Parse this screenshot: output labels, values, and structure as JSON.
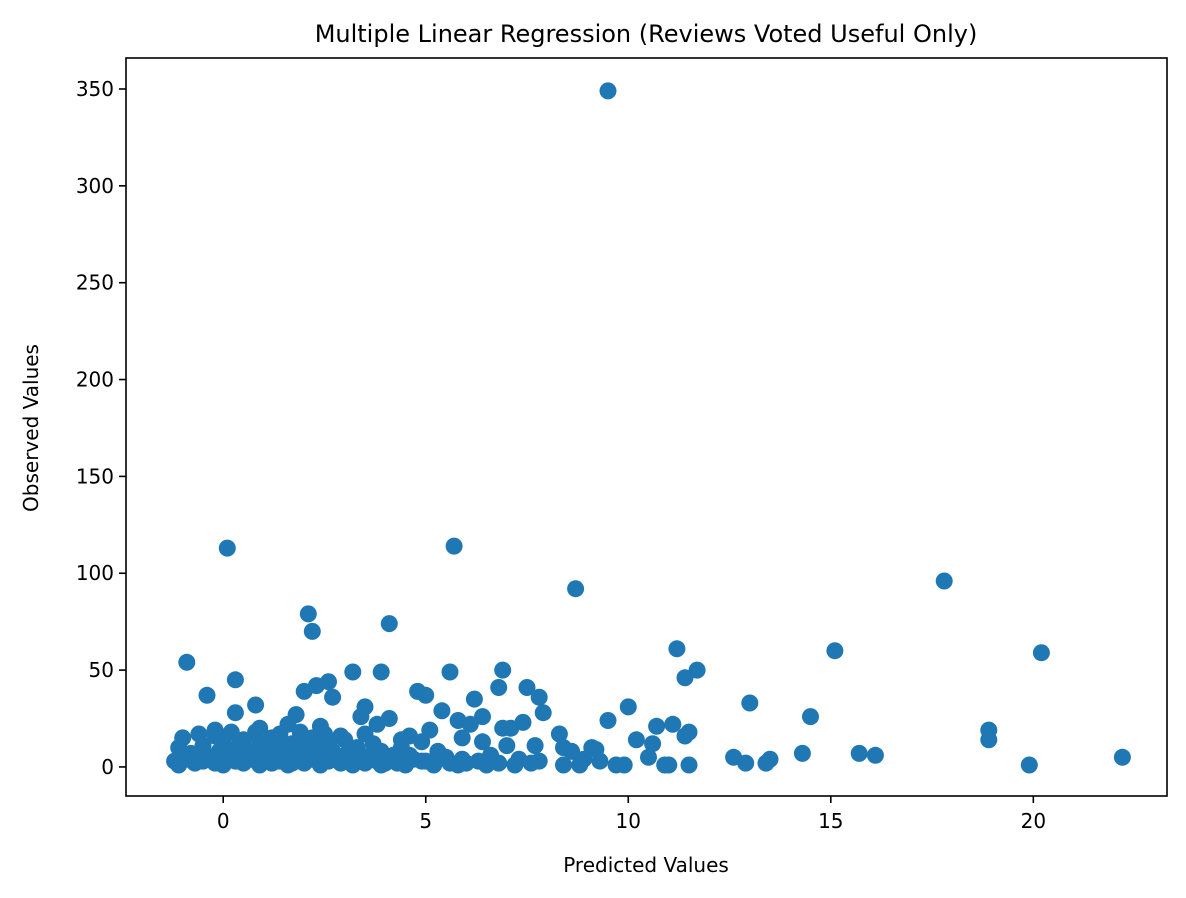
{
  "chart_data": {
    "type": "scatter",
    "title": "Multiple Linear Regression (Reviews Voted Useful Only)",
    "xlabel": "Predicted Values",
    "ylabel": "Observed Values",
    "xlim": [
      -2.4,
      23.3
    ],
    "ylim": [
      -15,
      366
    ],
    "x_ticks": [
      0,
      5,
      10,
      15,
      20
    ],
    "y_ticks": [
      0,
      50,
      100,
      150,
      200,
      250,
      300,
      350
    ],
    "x_tick_labels": [
      "0",
      "5",
      "10",
      "15",
      "20"
    ],
    "y_tick_labels": [
      "0",
      "50",
      "100",
      "150",
      "200",
      "250",
      "300",
      "350"
    ],
    "grid": false,
    "colors": {
      "marker": "#1f77b4"
    },
    "series": [
      {
        "points": [
          [
            9.5,
            349
          ],
          [
            0.1,
            113
          ],
          [
            5.7,
            114
          ],
          [
            8.7,
            92
          ],
          [
            17.8,
            96
          ],
          [
            2.1,
            79
          ],
          [
            4.1,
            74
          ],
          [
            2.2,
            70
          ],
          [
            11.2,
            61
          ],
          [
            15.1,
            60
          ],
          [
            20.2,
            59
          ],
          [
            -0.9,
            54
          ],
          [
            3.2,
            49
          ],
          [
            3.9,
            49
          ],
          [
            5.6,
            49
          ],
          [
            6.9,
            50
          ],
          [
            11.7,
            50
          ],
          [
            0.3,
            45
          ],
          [
            2.6,
            44
          ],
          [
            11.4,
            46
          ],
          [
            2.0,
            39
          ],
          [
            2.3,
            42
          ],
          [
            4.8,
            39
          ],
          [
            5.0,
            37
          ],
          [
            6.8,
            41
          ],
          [
            7.5,
            41
          ],
          [
            -0.4,
            37
          ],
          [
            2.7,
            36
          ],
          [
            6.2,
            35
          ],
          [
            7.8,
            36
          ],
          [
            13.0,
            33
          ],
          [
            0.8,
            32
          ],
          [
            3.5,
            31
          ],
          [
            10.0,
            31
          ],
          [
            0.3,
            28
          ],
          [
            5.4,
            29
          ],
          [
            7.9,
            28
          ],
          [
            1.8,
            27
          ],
          [
            3.4,
            26
          ],
          [
            6.4,
            26
          ],
          [
            14.5,
            26
          ],
          [
            4.1,
            25
          ],
          [
            5.8,
            24
          ],
          [
            9.5,
            24
          ],
          [
            1.6,
            22
          ],
          [
            3.8,
            22
          ],
          [
            6.1,
            22
          ],
          [
            7.4,
            23
          ],
          [
            10.7,
            21
          ],
          [
            11.1,
            22
          ],
          [
            0.9,
            20
          ],
          [
            2.4,
            21
          ],
          [
            6.9,
            20
          ],
          [
            7.1,
            20
          ],
          [
            -0.2,
            19
          ],
          [
            5.1,
            19
          ],
          [
            18.9,
            19
          ],
          [
            0.8,
            18
          ],
          [
            11.5,
            18
          ],
          [
            -0.6,
            17
          ],
          [
            1.4,
            17
          ],
          [
            3.5,
            17
          ],
          [
            8.3,
            17
          ],
          [
            2.9,
            16
          ],
          [
            4.6,
            16
          ],
          [
            11.4,
            16
          ],
          [
            -1.0,
            15
          ],
          [
            1.2,
            15
          ],
          [
            5.9,
            15
          ],
          [
            10.2,
            14
          ],
          [
            18.9,
            14
          ],
          [
            2.0,
            13
          ],
          [
            4.9,
            13
          ],
          [
            6.4,
            13
          ],
          [
            0.4,
            12
          ],
          [
            3.7,
            12
          ],
          [
            10.6,
            12
          ],
          [
            -0.5,
            11
          ],
          [
            1.5,
            11
          ],
          [
            7.0,
            11
          ],
          [
            7.7,
            11
          ],
          [
            9.1,
            10
          ],
          [
            -1.1,
            10
          ],
          [
            2.5,
            10
          ],
          [
            4.4,
            10
          ],
          [
            8.4,
            10
          ],
          [
            9.2,
            9
          ],
          [
            0.6,
            8
          ],
          [
            3.1,
            8
          ],
          [
            5.3,
            8
          ],
          [
            8.6,
            8
          ],
          [
            -0.8,
            7
          ],
          [
            1.9,
            7
          ],
          [
            14.3,
            7
          ],
          [
            15.7,
            7
          ],
          [
            0.2,
            6
          ],
          [
            2.8,
            6
          ],
          [
            4.2,
            6
          ],
          [
            6.6,
            6
          ],
          [
            16.1,
            6
          ],
          [
            -0.3,
            5
          ],
          [
            1.3,
            5
          ],
          [
            3.6,
            5
          ],
          [
            5.5,
            5
          ],
          [
            10.5,
            5
          ],
          [
            12.6,
            5
          ],
          [
            22.2,
            5
          ],
          [
            0.7,
            4
          ],
          [
            2.2,
            4
          ],
          [
            4.7,
            4
          ],
          [
            7.3,
            4
          ],
          [
            8.9,
            4
          ],
          [
            13.5,
            4
          ],
          [
            -1.2,
            3
          ],
          [
            1.0,
            3
          ],
          [
            3.3,
            3
          ],
          [
            5.0,
            3
          ],
          [
            6.3,
            3
          ],
          [
            7.8,
            3
          ],
          [
            9.3,
            3
          ],
          [
            -0.7,
            2
          ],
          [
            1.7,
            2
          ],
          [
            2.9,
            2
          ],
          [
            4.0,
            2
          ],
          [
            6.0,
            2
          ],
          [
            7.6,
            2
          ],
          [
            12.9,
            2
          ],
          [
            13.4,
            2
          ],
          [
            -1.1,
            1
          ],
          [
            0.0,
            1
          ],
          [
            0.9,
            1
          ],
          [
            1.6,
            1
          ],
          [
            2.4,
            1
          ],
          [
            3.2,
            1
          ],
          [
            3.9,
            1
          ],
          [
            4.5,
            1
          ],
          [
            5.2,
            1
          ],
          [
            5.8,
            1
          ],
          [
            6.5,
            1
          ],
          [
            7.2,
            1
          ],
          [
            8.4,
            1
          ],
          [
            8.8,
            1
          ],
          [
            9.7,
            1
          ],
          [
            9.9,
            1
          ],
          [
            10.9,
            1
          ],
          [
            11.0,
            1
          ],
          [
            11.5,
            1
          ],
          [
            19.9,
            1
          ],
          [
            -0.2,
            2
          ],
          [
            0.5,
            2
          ],
          [
            1.2,
            2
          ],
          [
            2.0,
            2
          ],
          [
            3.5,
            2
          ],
          [
            4.3,
            2
          ],
          [
            5.6,
            2
          ],
          [
            6.8,
            2
          ],
          [
            -0.5,
            3
          ],
          [
            0.3,
            3
          ],
          [
            1.4,
            3
          ],
          [
            2.6,
            3
          ],
          [
            3.8,
            3
          ],
          [
            4.9,
            3
          ],
          [
            -0.9,
            4
          ],
          [
            0.1,
            4
          ],
          [
            1.1,
            4
          ],
          [
            2.0,
            4
          ],
          [
            3.0,
            4
          ],
          [
            4.1,
            4
          ],
          [
            5.9,
            4
          ],
          [
            -0.6,
            6
          ],
          [
            0.6,
            6
          ],
          [
            1.5,
            6
          ],
          [
            2.3,
            6
          ],
          [
            3.4,
            6
          ],
          [
            4.6,
            6
          ],
          [
            -0.1,
            8
          ],
          [
            1.0,
            8
          ],
          [
            1.8,
            8
          ],
          [
            2.7,
            8
          ],
          [
            3.9,
            8
          ],
          [
            0.4,
            10
          ],
          [
            1.3,
            10
          ],
          [
            2.1,
            10
          ],
          [
            3.3,
            10
          ],
          [
            0.0,
            12
          ],
          [
            0.9,
            12
          ],
          [
            1.7,
            12
          ],
          [
            2.6,
            12
          ],
          [
            3.0,
            14
          ],
          [
            0.5,
            14
          ],
          [
            1.3,
            14
          ],
          [
            2.2,
            15
          ],
          [
            4.4,
            14
          ],
          [
            -0.2,
            16
          ],
          [
            0.2,
            18
          ],
          [
            1.9,
            18
          ],
          [
            2.5,
            17
          ]
        ]
      }
    ]
  }
}
